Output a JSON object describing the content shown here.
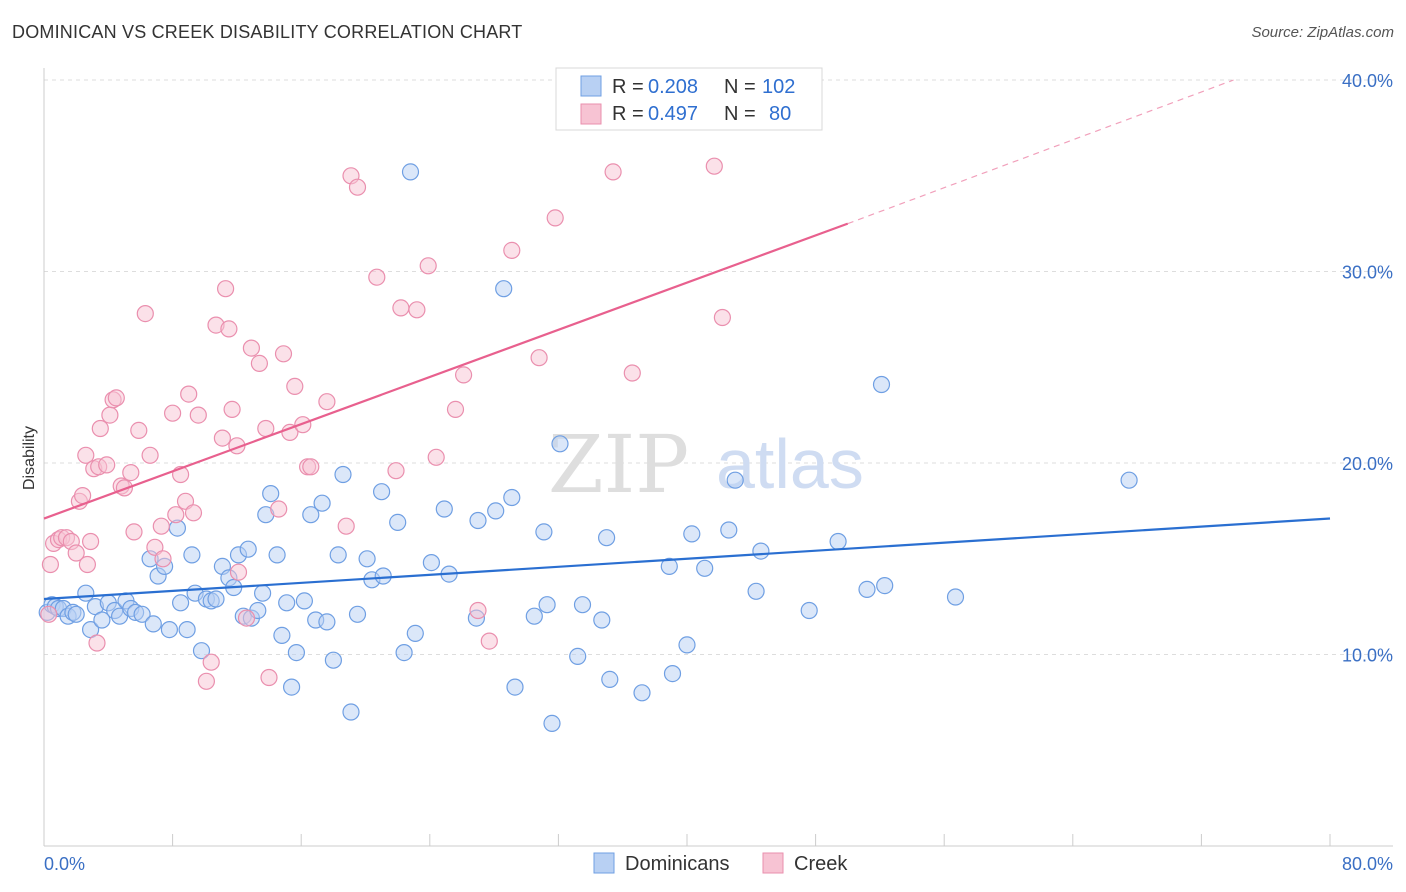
{
  "header": {
    "title": "DOMINICAN VS CREEK DISABILITY CORRELATION CHART",
    "source": "Source: ZipAtlas.com"
  },
  "legend": {
    "r_label": "R =",
    "n_label": "N =",
    "series": [
      {
        "r": "0.208",
        "n": "102"
      },
      {
        "r": "0.497",
        "n": "80"
      }
    ]
  },
  "bottom_legend": [
    "Dominicans",
    "Creek"
  ],
  "watermark": {
    "zip": "ZIP",
    "atlas": "atlas"
  },
  "colors": {
    "blue_fill": "#b8d0f3",
    "blue_stroke": "#6f9fe3",
    "blue_line": "#2a6fd1",
    "pink_fill": "#f7c3d3",
    "pink_stroke": "#ea8fae",
    "pink_line": "#e8608e",
    "grid": "#dddddd"
  },
  "chart_data": {
    "type": "scatter",
    "title": "DOMINICAN VS CREEK DISABILITY CORRELATION CHART",
    "xlabel": "",
    "ylabel": "Disability",
    "xlim": [
      0,
      80
    ],
    "ylim": [
      0,
      40
    ],
    "x_tick_labels": [
      "0.0%",
      "80.0%"
    ],
    "y_ticks": [
      10,
      20,
      30,
      40
    ],
    "y_tick_labels": [
      "10.0%",
      "20.0%",
      "30.0%",
      "40.0%"
    ],
    "grid": true,
    "legend_position": "top-center",
    "series": [
      {
        "name": "Dominicans",
        "r": 0.208,
        "n": 102,
        "trend": {
          "x0": 0,
          "y0": 12.9,
          "x1": 80,
          "y1": 17.1
        },
        "points": [
          [
            0.2,
            12.2
          ],
          [
            0.5,
            12.6
          ],
          [
            0.7,
            12.5
          ],
          [
            0.9,
            12.4
          ],
          [
            1.2,
            12.4
          ],
          [
            1.5,
            12.0
          ],
          [
            1.8,
            12.2
          ],
          [
            2.0,
            12.1
          ],
          [
            2.6,
            13.2
          ],
          [
            2.9,
            11.3
          ],
          [
            3.2,
            12.5
          ],
          [
            3.6,
            11.8
          ],
          [
            4.0,
            12.7
          ],
          [
            4.4,
            12.3
          ],
          [
            4.7,
            12.0
          ],
          [
            5.1,
            12.8
          ],
          [
            5.4,
            12.4
          ],
          [
            5.7,
            12.2
          ],
          [
            6.1,
            12.1
          ],
          [
            6.6,
            15.0
          ],
          [
            6.8,
            11.6
          ],
          [
            7.1,
            14.1
          ],
          [
            7.5,
            14.6
          ],
          [
            7.8,
            11.3
          ],
          [
            8.3,
            16.6
          ],
          [
            8.5,
            12.7
          ],
          [
            8.9,
            11.3
          ],
          [
            9.2,
            15.2
          ],
          [
            9.4,
            13.2
          ],
          [
            9.8,
            10.2
          ],
          [
            10.1,
            12.9
          ],
          [
            10.4,
            12.8
          ],
          [
            10.7,
            12.9
          ],
          [
            11.1,
            14.6
          ],
          [
            11.5,
            14.0
          ],
          [
            11.8,
            13.5
          ],
          [
            12.1,
            15.2
          ],
          [
            12.4,
            12.0
          ],
          [
            12.7,
            15.5
          ],
          [
            12.9,
            11.9
          ],
          [
            13.3,
            12.3
          ],
          [
            13.6,
            13.2
          ],
          [
            13.8,
            17.3
          ],
          [
            14.1,
            18.4
          ],
          [
            14.5,
            15.2
          ],
          [
            14.8,
            11.0
          ],
          [
            15.1,
            12.7
          ],
          [
            15.4,
            8.3
          ],
          [
            15.7,
            10.1
          ],
          [
            16.2,
            12.8
          ],
          [
            16.6,
            17.3
          ],
          [
            16.9,
            11.8
          ],
          [
            17.3,
            17.9
          ],
          [
            17.6,
            11.7
          ],
          [
            18.0,
            9.7
          ],
          [
            18.3,
            15.2
          ],
          [
            18.6,
            19.4
          ],
          [
            19.1,
            7.0
          ],
          [
            19.5,
            12.1
          ],
          [
            20.1,
            15.0
          ],
          [
            20.4,
            13.9
          ],
          [
            21.0,
            18.5
          ],
          [
            21.1,
            14.1
          ],
          [
            22.0,
            16.9
          ],
          [
            22.4,
            10.1
          ],
          [
            23.1,
            11.1
          ],
          [
            24.1,
            14.8
          ],
          [
            24.9,
            17.6
          ],
          [
            25.2,
            14.2
          ],
          [
            26.9,
            11.9
          ],
          [
            27.0,
            17.0
          ],
          [
            28.1,
            17.5
          ],
          [
            28.6,
            29.1
          ],
          [
            29.1,
            18.2
          ],
          [
            29.3,
            8.3
          ],
          [
            30.5,
            12.0
          ],
          [
            31.1,
            16.4
          ],
          [
            31.3,
            12.6
          ],
          [
            31.6,
            6.4
          ],
          [
            32.1,
            21.0
          ],
          [
            33.2,
            9.9
          ],
          [
            33.5,
            12.6
          ],
          [
            34.7,
            11.8
          ],
          [
            35.0,
            16.1
          ],
          [
            35.2,
            8.7
          ],
          [
            37.2,
            8.0
          ],
          [
            38.9,
            14.6
          ],
          [
            39.1,
            9.0
          ],
          [
            40.0,
            10.5
          ],
          [
            40.3,
            16.3
          ],
          [
            41.1,
            14.5
          ],
          [
            42.6,
            16.5
          ],
          [
            43.0,
            19.1
          ],
          [
            44.3,
            13.3
          ],
          [
            44.6,
            15.4
          ],
          [
            47.6,
            12.3
          ],
          [
            49.4,
            15.9
          ],
          [
            51.2,
            13.4
          ],
          [
            52.1,
            24.1
          ],
          [
            52.3,
            13.6
          ],
          [
            56.7,
            13.0
          ],
          [
            67.5,
            19.1
          ],
          [
            22.8,
            35.2
          ]
        ]
      },
      {
        "name": "Creek",
        "r": 0.497,
        "n": 80,
        "trend": {
          "x0": 0,
          "y0": 17.1,
          "x1": 50,
          "y1": 32.5,
          "dash_to": {
            "x": 74,
            "y": 40.0
          }
        },
        "points": [
          [
            0.3,
            12.1
          ],
          [
            0.4,
            14.7
          ],
          [
            0.6,
            15.8
          ],
          [
            0.9,
            16.0
          ],
          [
            1.1,
            16.1
          ],
          [
            1.4,
            16.1
          ],
          [
            1.7,
            15.9
          ],
          [
            2.0,
            15.3
          ],
          [
            2.2,
            18.0
          ],
          [
            2.4,
            18.3
          ],
          [
            2.6,
            20.4
          ],
          [
            2.7,
            14.7
          ],
          [
            2.9,
            15.9
          ],
          [
            3.1,
            19.7
          ],
          [
            3.3,
            10.6
          ],
          [
            3.4,
            19.8
          ],
          [
            3.5,
            21.8
          ],
          [
            3.9,
            19.9
          ],
          [
            4.1,
            22.5
          ],
          [
            4.3,
            23.3
          ],
          [
            4.5,
            23.4
          ],
          [
            4.8,
            18.8
          ],
          [
            5.0,
            18.7
          ],
          [
            5.4,
            19.5
          ],
          [
            5.6,
            16.4
          ],
          [
            5.9,
            21.7
          ],
          [
            6.3,
            27.8
          ],
          [
            6.6,
            20.4
          ],
          [
            6.9,
            15.6
          ],
          [
            7.3,
            16.7
          ],
          [
            7.4,
            15.0
          ],
          [
            8.0,
            22.6
          ],
          [
            8.2,
            17.3
          ],
          [
            8.5,
            19.4
          ],
          [
            8.8,
            18.0
          ],
          [
            9.0,
            23.6
          ],
          [
            9.3,
            17.4
          ],
          [
            9.6,
            22.5
          ],
          [
            10.1,
            8.6
          ],
          [
            10.4,
            9.6
          ],
          [
            10.7,
            27.2
          ],
          [
            11.1,
            21.3
          ],
          [
            11.3,
            29.1
          ],
          [
            11.5,
            27.0
          ],
          [
            11.7,
            22.8
          ],
          [
            12.1,
            14.3
          ],
          [
            12.6,
            11.9
          ],
          [
            12.9,
            26.0
          ],
          [
            13.4,
            25.2
          ],
          [
            13.8,
            21.8
          ],
          [
            14.0,
            8.8
          ],
          [
            14.6,
            17.6
          ],
          [
            14.9,
            25.7
          ],
          [
            15.3,
            21.6
          ],
          [
            15.6,
            24.0
          ],
          [
            16.1,
            22.0
          ],
          [
            16.4,
            19.8
          ],
          [
            17.6,
            23.2
          ],
          [
            18.8,
            16.7
          ],
          [
            19.1,
            35.0
          ],
          [
            19.5,
            34.4
          ],
          [
            20.7,
            29.7
          ],
          [
            21.9,
            19.6
          ],
          [
            22.2,
            28.1
          ],
          [
            23.2,
            28.0
          ],
          [
            23.9,
            30.3
          ],
          [
            24.4,
            20.3
          ],
          [
            25.6,
            22.8
          ],
          [
            26.1,
            24.6
          ],
          [
            27.0,
            12.3
          ],
          [
            27.7,
            10.7
          ],
          [
            29.1,
            31.1
          ],
          [
            30.8,
            25.5
          ],
          [
            31.8,
            32.8
          ],
          [
            35.4,
            35.2
          ],
          [
            36.6,
            24.7
          ],
          [
            42.2,
            27.6
          ],
          [
            41.7,
            35.5
          ],
          [
            16.6,
            19.8
          ],
          [
            12.0,
            20.9
          ]
        ]
      }
    ]
  }
}
